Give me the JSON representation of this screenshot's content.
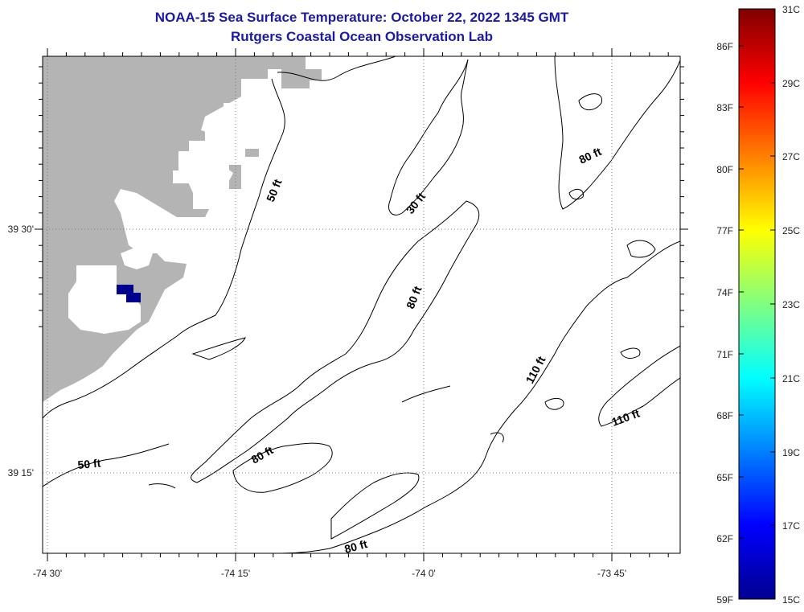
{
  "title": {
    "line1": "NOAA-15 Sea Surface Temperature:  October 22, 2022 1345 GMT",
    "line2": "Rutgers Coastal Ocean Observation Lab"
  },
  "map": {
    "land_color": "#b4b4b4",
    "lon_labels": [
      "-74 30'",
      "-74 15'",
      "-74 0'",
      "-73 45'"
    ],
    "lat_labels": [
      "39 30'",
      "39 15'"
    ],
    "depth_contour_labels": [
      "50 ft",
      "50 ft",
      "30 ft",
      "80 ft",
      "80 ft",
      "80 ft",
      "80 ft",
      "110 ft",
      "110 ft"
    ]
  },
  "colorbar": {
    "fahrenheit_labels": [
      "86F",
      "83F",
      "80F",
      "77F",
      "74F",
      "71F",
      "68F",
      "65F",
      "62F",
      "59F"
    ],
    "celsius_labels": [
      "31C",
      "29C",
      "27C",
      "25C",
      "23C",
      "21C",
      "19C",
      "17C",
      "15C"
    ],
    "range_c": [
      15,
      31
    ],
    "range_f": [
      59,
      88
    ],
    "colors": [
      "#00008f",
      "#0000ff",
      "#0080ff",
      "#00ffff",
      "#80ff80",
      "#ffff00",
      "#ff8000",
      "#ff0000",
      "#800000"
    ]
  }
}
